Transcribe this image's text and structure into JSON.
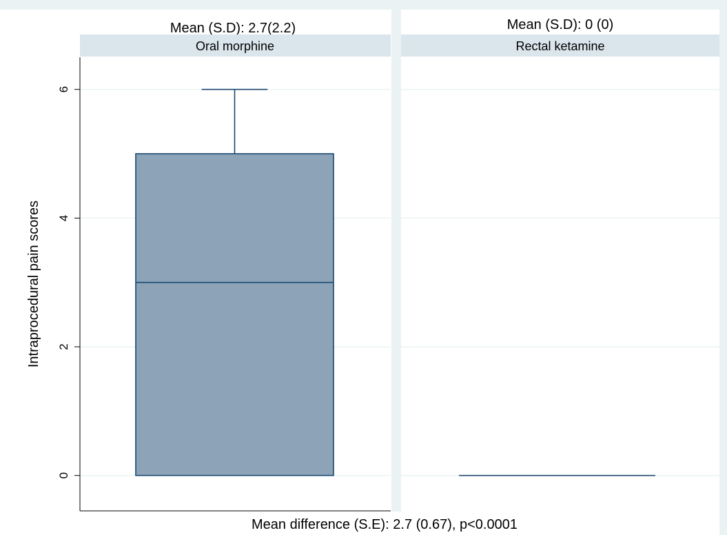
{
  "chart_data": {
    "type": "box",
    "ylabel": "Intraprocedural pain scores",
    "xlabel": "",
    "ylim": [
      -0.55,
      6.5
    ],
    "yticks": [
      0,
      2,
      4,
      6
    ],
    "grid": true,
    "footer": "Mean difference (S.E): 2.7 (0.67), p<0.0001",
    "box_color": "#8ca3b8",
    "line_color": "#1a476f",
    "panels": [
      {
        "strip_label": "Oral morphine",
        "note": "Mean (S.D): 2.7(2.2)",
        "box": {
          "min": 0,
          "q1": 0,
          "median": 3,
          "q3": 5,
          "max": 6
        }
      },
      {
        "strip_label": "Rectal ketamine",
        "note": "Mean (S.D): 0 (0)",
        "box": {
          "min": 0,
          "q1": 0,
          "median": 0,
          "q3": 0,
          "max": 0
        }
      }
    ]
  }
}
